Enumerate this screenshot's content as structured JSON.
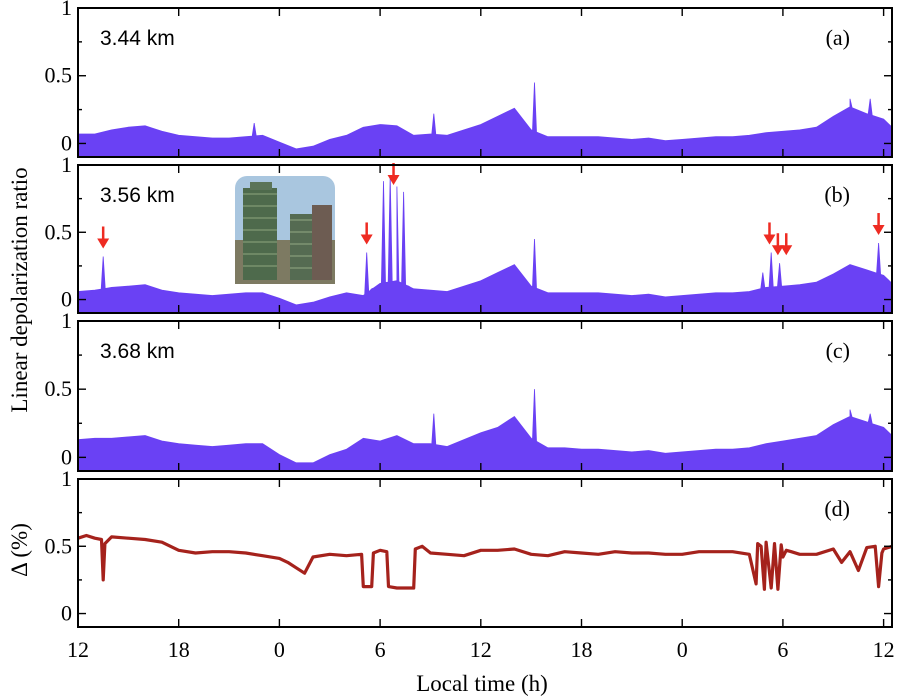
{
  "colors": {
    "area_fill": "#6a41f4",
    "line": "#a5221c",
    "arrow": "#ee2b22"
  },
  "chart_data": {
    "type": "area",
    "ylabel_shared": "Linear depolarization ratio",
    "xlabel": "Local time (h)",
    "x_tick_labels": [
      "12",
      "18",
      "0",
      "6",
      "12",
      "18",
      "0",
      "6",
      "12"
    ],
    "x_ticks_hours": [
      0,
      6,
      12,
      18,
      24,
      30,
      36,
      42,
      48
    ],
    "xlim_hours": [
      0,
      48.5
    ],
    "y_tick_labels": [
      "0",
      "0.5",
      "1"
    ],
    "ylim": [
      -0.1,
      1.0
    ],
    "panels": [
      {
        "id": "a",
        "tag": "(a)",
        "altitude": "3.44 km",
        "type": "area",
        "x": [
          0,
          1,
          2,
          3,
          4,
          5,
          6,
          7,
          8,
          9,
          10,
          11,
          12,
          13,
          14,
          15,
          16,
          17,
          18,
          19,
          20,
          21,
          22,
          23,
          24,
          25,
          26,
          27,
          28,
          29,
          30,
          31,
          32,
          33,
          34,
          35,
          36,
          37,
          38,
          39,
          40,
          41,
          42,
          43,
          44,
          45,
          46,
          47,
          48,
          48.5
        ],
        "values": [
          0.07,
          0.07,
          0.1,
          0.12,
          0.13,
          0.09,
          0.06,
          0.05,
          0.04,
          0.04,
          0.05,
          0.06,
          0.01,
          -0.04,
          -0.02,
          0.03,
          0.06,
          0.12,
          0.14,
          0.13,
          0.06,
          0.07,
          0.06,
          0.1,
          0.14,
          0.2,
          0.26,
          0.1,
          0.05,
          0.05,
          0.05,
          0.05,
          0.04,
          0.03,
          0.04,
          0.02,
          0.03,
          0.04,
          0.05,
          0.05,
          0.06,
          0.08,
          0.09,
          0.1,
          0.12,
          0.2,
          0.27,
          0.22,
          0.18,
          0.12
        ],
        "spikes": [
          [
            10.5,
            0.15
          ],
          [
            21.2,
            0.22
          ],
          [
            27.2,
            0.45
          ],
          [
            46,
            0.33
          ],
          [
            47.2,
            0.33
          ]
        ]
      },
      {
        "id": "b",
        "tag": "(b)",
        "altitude": "3.56 km",
        "type": "area",
        "x": [
          0,
          1,
          2,
          3,
          4,
          5,
          6,
          7,
          8,
          9,
          10,
          11,
          12,
          13,
          14,
          15,
          16,
          17,
          18,
          19,
          20,
          21,
          22,
          23,
          24,
          25,
          26,
          27,
          28,
          29,
          30,
          31,
          32,
          33,
          34,
          35,
          36,
          37,
          38,
          39,
          40,
          41,
          42,
          43,
          44,
          45,
          46,
          47,
          48,
          48.5
        ],
        "values": [
          0.06,
          0.07,
          0.09,
          0.1,
          0.11,
          0.07,
          0.05,
          0.04,
          0.03,
          0.04,
          0.05,
          0.05,
          0.01,
          -0.04,
          -0.02,
          0.02,
          0.05,
          0.03,
          0.12,
          0.14,
          0.08,
          0.07,
          0.06,
          0.1,
          0.14,
          0.2,
          0.26,
          0.1,
          0.05,
          0.05,
          0.05,
          0.05,
          0.04,
          0.03,
          0.04,
          0.02,
          0.03,
          0.04,
          0.05,
          0.05,
          0.06,
          0.09,
          0.1,
          0.11,
          0.13,
          0.19,
          0.26,
          0.22,
          0.18,
          0.12
        ],
        "spikes": [
          [
            1.5,
            0.32
          ],
          [
            17.2,
            0.35
          ],
          [
            17.5,
            0.08
          ],
          [
            18.2,
            0.88
          ],
          [
            18.6,
            0.92
          ],
          [
            19,
            0.84
          ],
          [
            19.4,
            0.8
          ],
          [
            19.7,
            0.1
          ],
          [
            27.2,
            0.45
          ],
          [
            40.8,
            0.2
          ],
          [
            41.3,
            0.35
          ],
          [
            41.8,
            0.27
          ],
          [
            47.7,
            0.42
          ]
        ],
        "arrows_hours": [
          1.5,
          17.2,
          18.8,
          41.2,
          41.7,
          42.2,
          47.7
        ]
      },
      {
        "id": "c",
        "tag": "(c)",
        "altitude": "3.68 km",
        "type": "area",
        "x": [
          0,
          1,
          2,
          3,
          4,
          5,
          6,
          7,
          8,
          9,
          10,
          11,
          12,
          13,
          14,
          15,
          16,
          17,
          18,
          19,
          20,
          21,
          22,
          23,
          24,
          25,
          26,
          27,
          28,
          29,
          30,
          31,
          32,
          33,
          34,
          35,
          36,
          37,
          38,
          39,
          40,
          41,
          42,
          43,
          44,
          45,
          46,
          47,
          48,
          48.5
        ],
        "values": [
          0.13,
          0.14,
          0.14,
          0.15,
          0.16,
          0.12,
          0.1,
          0.09,
          0.08,
          0.09,
          0.1,
          0.1,
          0.02,
          -0.04,
          -0.04,
          0.02,
          0.06,
          0.14,
          0.12,
          0.16,
          0.1,
          0.1,
          0.08,
          0.13,
          0.18,
          0.22,
          0.3,
          0.14,
          0.07,
          0.07,
          0.06,
          0.06,
          0.05,
          0.04,
          0.05,
          0.03,
          0.04,
          0.05,
          0.06,
          0.06,
          0.07,
          0.1,
          0.12,
          0.14,
          0.16,
          0.24,
          0.3,
          0.26,
          0.22,
          0.16
        ],
        "spikes": [
          [
            21.2,
            0.32
          ],
          [
            27.2,
            0.5
          ],
          [
            46,
            0.35
          ],
          [
            47.2,
            0.32
          ]
        ]
      },
      {
        "id": "d",
        "tag": "(d)",
        "ylabel": "Δ (%)",
        "type": "line",
        "x": [
          0,
          0.5,
          1,
          1.4,
          1.5,
          1.6,
          2,
          3,
          4,
          5,
          6,
          7,
          8,
          9,
          10,
          11,
          12,
          12.5,
          13,
          13.5,
          14,
          15,
          16,
          16.9,
          17,
          17.5,
          17.6,
          18,
          18.4,
          18.5,
          19,
          20,
          20.1,
          20.5,
          21,
          22,
          23,
          24,
          25,
          26,
          27,
          28,
          29,
          30,
          31,
          32,
          33,
          34,
          35,
          36,
          37,
          38,
          39,
          40,
          40.4,
          40.5,
          40.7,
          40.9,
          41,
          41.3,
          41.5,
          41.7,
          41.9,
          42,
          42.2,
          42.5,
          43,
          44,
          45,
          45.5,
          46,
          46.5,
          47,
          47.5,
          47.7,
          47.9,
          48,
          48.5
        ],
        "values": [
          0.56,
          0.58,
          0.56,
          0.55,
          0.25,
          0.52,
          0.57,
          0.56,
          0.55,
          0.53,
          0.47,
          0.45,
          0.46,
          0.46,
          0.45,
          0.43,
          0.41,
          0.38,
          0.34,
          0.3,
          0.42,
          0.44,
          0.43,
          0.44,
          0.2,
          0.2,
          0.45,
          0.47,
          0.46,
          0.2,
          0.19,
          0.19,
          0.48,
          0.5,
          0.45,
          0.44,
          0.43,
          0.47,
          0.47,
          0.48,
          0.44,
          0.43,
          0.46,
          0.45,
          0.44,
          0.46,
          0.45,
          0.45,
          0.44,
          0.44,
          0.46,
          0.46,
          0.46,
          0.44,
          0.22,
          0.52,
          0.5,
          0.18,
          0.53,
          0.19,
          0.52,
          0.18,
          0.51,
          0.42,
          0.47,
          0.46,
          0.44,
          0.44,
          0.48,
          0.38,
          0.46,
          0.32,
          0.49,
          0.5,
          0.2,
          0.45,
          0.48,
          0.5
        ]
      }
    ]
  }
}
